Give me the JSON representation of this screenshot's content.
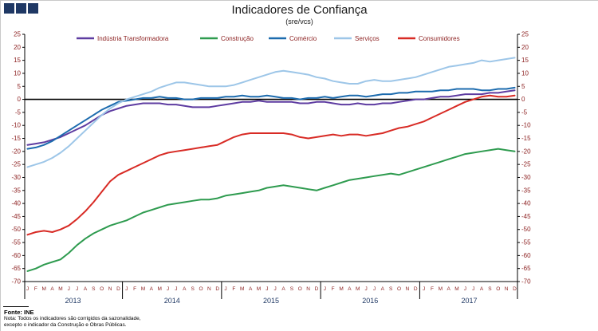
{
  "page": {
    "title": "Indicadores de Confiança",
    "subtitle": "(sre/vcs)",
    "logo_color": "#1F3864",
    "footer": {
      "source": "Fonte: INE",
      "note_line1": "Nota: Todos os indicadores são corrigidos da sazonalidade,",
      "note_line2": "excepto o indicador da Construção e Obras Públicas."
    }
  },
  "chart_data": {
    "type": "line",
    "title": "Indicadores de Confiança",
    "subtitle": "(sre/vcs)",
    "ylim": [
      -70,
      25
    ],
    "ytick_step": 5,
    "grid": "off",
    "legend_position": "top",
    "axis_label_color": "#8B1E1E",
    "month_label_color": "#8B1E1E",
    "year_label_color": "#1F3864",
    "legend_text_color": "#8B1E1E",
    "zero_line_color": "#000000",
    "x_month_letters": [
      "J",
      "F",
      "M",
      "A",
      "M",
      "J",
      "J",
      "A",
      "S",
      "O",
      "N",
      "D"
    ],
    "years": [
      "2013",
      "2014",
      "2015",
      "2016",
      "2017"
    ],
    "series": [
      {
        "name": "Indústria Transformadora",
        "color": "#5E3CA1",
        "values": [
          -17.5,
          -17,
          -16.5,
          -15.5,
          -14.5,
          -13,
          -11.5,
          -10,
          -8,
          -6,
          -4.5,
          -3.5,
          -2.5,
          -2,
          -1.5,
          -1.5,
          -1.5,
          -2,
          -2,
          -2.5,
          -3,
          -3,
          -3,
          -2.5,
          -2,
          -1.5,
          -1,
          -1,
          -0.5,
          -1,
          -1,
          -1,
          -1,
          -1.5,
          -1.5,
          -1,
          -1,
          -1.5,
          -2,
          -2,
          -1.5,
          -2,
          -2,
          -1.5,
          -1.5,
          -1,
          -0.5,
          0,
          0,
          0.5,
          1,
          1,
          1.5,
          2,
          2,
          2,
          2.5,
          2.5,
          3,
          3.5
        ]
      },
      {
        "name": "Construção",
        "color": "#2E9B4F",
        "values": [
          -66,
          -65,
          -63.5,
          -62.5,
          -61.5,
          -59,
          -56,
          -53.5,
          -51.5,
          -50,
          -48.5,
          -47.5,
          -46.5,
          -45,
          -43.5,
          -42.5,
          -41.5,
          -40.5,
          -40,
          -39.5,
          -39,
          -38.5,
          -38.5,
          -38,
          -37,
          -36.5,
          -36,
          -35.5,
          -35,
          -34,
          -33.5,
          -33,
          -33.5,
          -34,
          -34.5,
          -35,
          -34,
          -33,
          -32,
          -31,
          -30.5,
          -30,
          -29.5,
          -29,
          -28.5,
          -29,
          -28,
          -27,
          -26,
          -25,
          -24,
          -23,
          -22,
          -21,
          -20.5,
          -20,
          -19.5,
          -19,
          -19.5,
          -20
        ]
      },
      {
        "name": "Comércio",
        "color": "#1C6BAE",
        "values": [
          -19,
          -18.5,
          -17.5,
          -16,
          -14,
          -12,
          -10,
          -8,
          -6,
          -4,
          -2.5,
          -1,
          -0.5,
          0,
          0.5,
          0.5,
          1,
          0.5,
          0.5,
          0,
          0,
          0.5,
          0.5,
          0.5,
          1,
          1,
          1.5,
          1,
          1,
          1.5,
          1,
          0.5,
          0.5,
          0,
          0.5,
          0.5,
          1,
          0.5,
          1,
          1.5,
          1.5,
          1,
          1.5,
          2,
          2,
          2.5,
          2.5,
          3,
          3,
          3,
          3.5,
          3.5,
          4,
          4,
          4,
          3.5,
          3.5,
          4,
          4,
          4.5
        ]
      },
      {
        "name": "Serviços",
        "color": "#9DC6E8",
        "values": [
          -26,
          -25,
          -24,
          -22.5,
          -20.5,
          -18,
          -15,
          -12,
          -9,
          -6,
          -3.5,
          -1.5,
          0,
          1,
          2,
          3,
          4.5,
          5.5,
          6.5,
          6.5,
          6,
          5.5,
          5,
          5,
          5,
          5.5,
          6.5,
          7.5,
          8.5,
          9.5,
          10.5,
          11,
          10.5,
          10,
          9.5,
          8.5,
          8,
          7,
          6.5,
          6,
          6,
          7,
          7.5,
          7,
          7,
          7.5,
          8,
          8.5,
          9.5,
          10.5,
          11.5,
          12.5,
          13,
          13.5,
          14,
          15,
          14.5,
          15,
          15.5,
          16
        ]
      },
      {
        "name": "Consumidores",
        "color": "#D82B25",
        "values": [
          -52,
          -51,
          -50.5,
          -51,
          -50,
          -48.5,
          -46,
          -43,
          -39.5,
          -35.5,
          -31.5,
          -29,
          -27.5,
          -26,
          -24.5,
          -23,
          -21.5,
          -20.5,
          -20,
          -19.5,
          -19,
          -18.5,
          -18,
          -17.5,
          -16,
          -14.5,
          -13.5,
          -13,
          -13,
          -13,
          -13,
          -13,
          -13.5,
          -14.5,
          -15,
          -14.5,
          -14,
          -13.5,
          -14,
          -13.5,
          -13.5,
          -14,
          -13.5,
          -13,
          -12,
          -11,
          -10.5,
          -9.5,
          -8.5,
          -7,
          -5.5,
          -4,
          -2.5,
          -1,
          0,
          1,
          1.5,
          1,
          1,
          1.5
        ]
      }
    ]
  }
}
